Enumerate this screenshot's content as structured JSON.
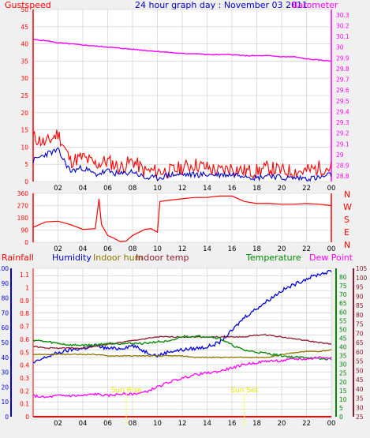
{
  "header": {
    "gust_label": "Gustspeed",
    "title": "24 hour graph day : November 03 2011",
    "baro_label": "Barometer"
  },
  "colors": {
    "background": "#f0f0f0",
    "plot_bg": "#ffffff",
    "grid": "#c8c8c8",
    "gust": "#ff0000",
    "wind": "#0000cc",
    "barometer": "#ff00ff",
    "direction": "#ff0000",
    "rainfall": "#ff0000",
    "humidity": "#0000dd",
    "indoor_hum": "#8b7500",
    "indoor_temp": "#8b1a2b",
    "temperature": "#008800",
    "dew_point": "#ff00ff",
    "sun_marker": "#ffff66"
  },
  "x_axis": {
    "ticks": [
      "02",
      "04",
      "06",
      "08",
      "10",
      "12",
      "14",
      "16",
      "18",
      "20",
      "22",
      "00"
    ]
  },
  "chart_data": [
    {
      "type": "line",
      "id": "wind",
      "title": "24 hour graph day : November 03 2011",
      "left_axis": {
        "label": "Gustspeed",
        "ticks": [
          "0",
          "5",
          "10",
          "15",
          "20",
          "25",
          "30",
          "35",
          "40",
          "45",
          "50"
        ],
        "ylim": [
          0,
          50
        ]
      },
      "right_axis": {
        "label": "Barometer",
        "ticks": [
          "28.8",
          "28.9",
          "29",
          "29.1",
          "29.2",
          "29.3",
          "29.4",
          "29.5",
          "29.6",
          "29.7",
          "29.8",
          "29.9",
          "30",
          "30.1",
          "30.2",
          "30.3"
        ],
        "ylim": [
          28.75,
          30.35
        ]
      },
      "x": [
        0,
        1,
        2,
        3,
        4,
        5,
        6,
        7,
        8,
        9,
        10,
        11,
        12,
        13,
        14,
        15,
        16,
        17,
        18,
        19,
        20,
        21,
        22,
        23,
        24
      ],
      "series": [
        {
          "name": "Gustspeed",
          "axis": "left",
          "values": [
            13,
            11,
            14,
            6,
            7,
            5,
            6,
            4,
            6,
            3,
            3,
            3,
            4,
            5,
            4,
            3,
            4,
            3,
            3,
            4,
            3,
            3,
            3,
            4,
            4
          ]
        },
        {
          "name": "",
          "axis": "left",
          "values": [
            6,
            8,
            9,
            3,
            4,
            2,
            3,
            2,
            3,
            1,
            1,
            2,
            2,
            2,
            2,
            2,
            2,
            2,
            1,
            2,
            1,
            1,
            1,
            1,
            2
          ]
        },
        {
          "name": "Barometer",
          "axis": "right",
          "values": [
            30.07,
            30.06,
            30.04,
            30.03,
            30.02,
            30.01,
            30.0,
            29.99,
            29.98,
            29.97,
            29.96,
            29.95,
            29.94,
            29.94,
            29.93,
            29.93,
            29.93,
            29.92,
            29.92,
            29.92,
            29.91,
            29.91,
            29.89,
            29.88,
            29.87
          ]
        }
      ]
    },
    {
      "type": "line",
      "id": "direction",
      "left_axis": {
        "ticks": [
          "0",
          "90",
          "180",
          "270",
          "360"
        ],
        "ylim": [
          0,
          360
        ]
      },
      "right_axis": {
        "ticks": [
          "N",
          "W",
          "S",
          "E",
          "N"
        ]
      },
      "x": [
        0,
        1,
        2,
        3,
        4,
        5,
        5.3,
        5.5,
        6,
        6.5,
        7,
        7.5,
        8,
        9,
        9.5,
        10,
        10.2,
        11,
        12,
        13,
        14,
        15,
        16,
        17,
        18,
        19,
        20,
        21,
        22,
        23,
        24
      ],
      "series": [
        {
          "name": "",
          "values": [
            110,
            150,
            155,
            130,
            95,
            100,
            320,
            130,
            50,
            30,
            5,
            10,
            50,
            95,
            100,
            75,
            300,
            310,
            320,
            330,
            330,
            340,
            340,
            300,
            285,
            285,
            280,
            280,
            285,
            280,
            270
          ]
        }
      ]
    },
    {
      "type": "line",
      "id": "climate",
      "legend": [
        "Rainfall",
        "Humidity",
        "Indoor hum",
        "Indoor temp",
        "Temperature",
        "Dew Point"
      ],
      "axes": {
        "humidity": {
          "ticks": [
            "0",
            "10",
            "20",
            "30",
            "40",
            "50",
            "60",
            "70",
            "80",
            "90",
            "100"
          ],
          "ylim": [
            0,
            100
          ]
        },
        "rainfall": {
          "ticks": [
            "0",
            "0.1",
            "0.2",
            "0.3",
            "0.4",
            "0.5",
            "0.6",
            "0.7",
            "0.8",
            "0.9",
            "1",
            "1.1"
          ],
          "ylim": [
            0,
            1.15
          ]
        },
        "temperature": {
          "ticks": [
            "0",
            "5",
            "10",
            "15",
            "20",
            "25",
            "30",
            "35",
            "40",
            "45",
            "50",
            "55",
            "60",
            "65",
            "70",
            "75",
            "80"
          ],
          "ylim": [
            0,
            85
          ]
        },
        "indoor_temp": {
          "ticks": [
            "25",
            "30",
            "35",
            "40",
            "45",
            "50",
            "55",
            "60",
            "65",
            "70",
            "75",
            "80",
            "85",
            "90",
            "95",
            "100",
            "105"
          ],
          "ylim": [
            25,
            105
          ]
        }
      },
      "x": [
        0,
        1,
        2,
        3,
        4,
        5,
        6,
        7,
        8,
        9,
        10,
        11,
        12,
        13,
        14,
        15,
        16,
        17,
        18,
        19,
        20,
        21,
        22,
        23,
        24
      ],
      "series": [
        {
          "name": "Rainfall",
          "axis": "rainfall",
          "values": [
            0,
            0,
            0,
            0,
            0,
            0,
            0,
            0,
            0,
            0,
            0,
            0,
            0,
            0,
            0,
            0,
            0,
            0,
            0,
            0,
            0,
            0,
            0,
            0,
            0
          ]
        },
        {
          "name": "Humidity",
          "axis": "humidity",
          "values": [
            36,
            40,
            43,
            45,
            46,
            48,
            46,
            46,
            48,
            44,
            41,
            44,
            45,
            46,
            47,
            50,
            58,
            67,
            73,
            79,
            85,
            89,
            93,
            96,
            98
          ]
        },
        {
          "name": "Indoor hum",
          "axis": "humidity",
          "values": [
            42,
            42,
            42,
            42,
            42,
            42,
            41,
            41,
            41,
            41,
            41,
            41,
            41,
            40,
            40,
            40,
            40,
            40,
            40,
            40,
            42,
            43,
            44,
            44,
            45
          ]
        },
        {
          "name": "Indoor temp",
          "axis": "indoor_temp",
          "values": [
            63,
            62,
            62,
            62,
            62,
            63,
            64,
            65,
            66,
            67,
            68,
            68,
            68,
            68,
            68,
            68,
            68,
            68,
            69,
            69,
            68,
            67,
            66,
            65,
            64
          ]
        },
        {
          "name": "Temperature",
          "axis": "temperature",
          "values": [
            44,
            43,
            42,
            41,
            41,
            41,
            42,
            42,
            42,
            42,
            43,
            43,
            46,
            46,
            46,
            45,
            41,
            38,
            37,
            36,
            35,
            34,
            34,
            33,
            33
          ]
        },
        {
          "name": "Dew Point",
          "axis": "temperature",
          "values": [
            12,
            11,
            12,
            12,
            12,
            13,
            12,
            13,
            13,
            14,
            17,
            20,
            22,
            24,
            25,
            26,
            28,
            30,
            31,
            32,
            32,
            33,
            33,
            34,
            34
          ]
        }
      ],
      "annotations": [
        {
          "text": "Sun Rise",
          "x": 7.5
        },
        {
          "text": "Sun Set",
          "x": 17.0
        }
      ]
    }
  ]
}
